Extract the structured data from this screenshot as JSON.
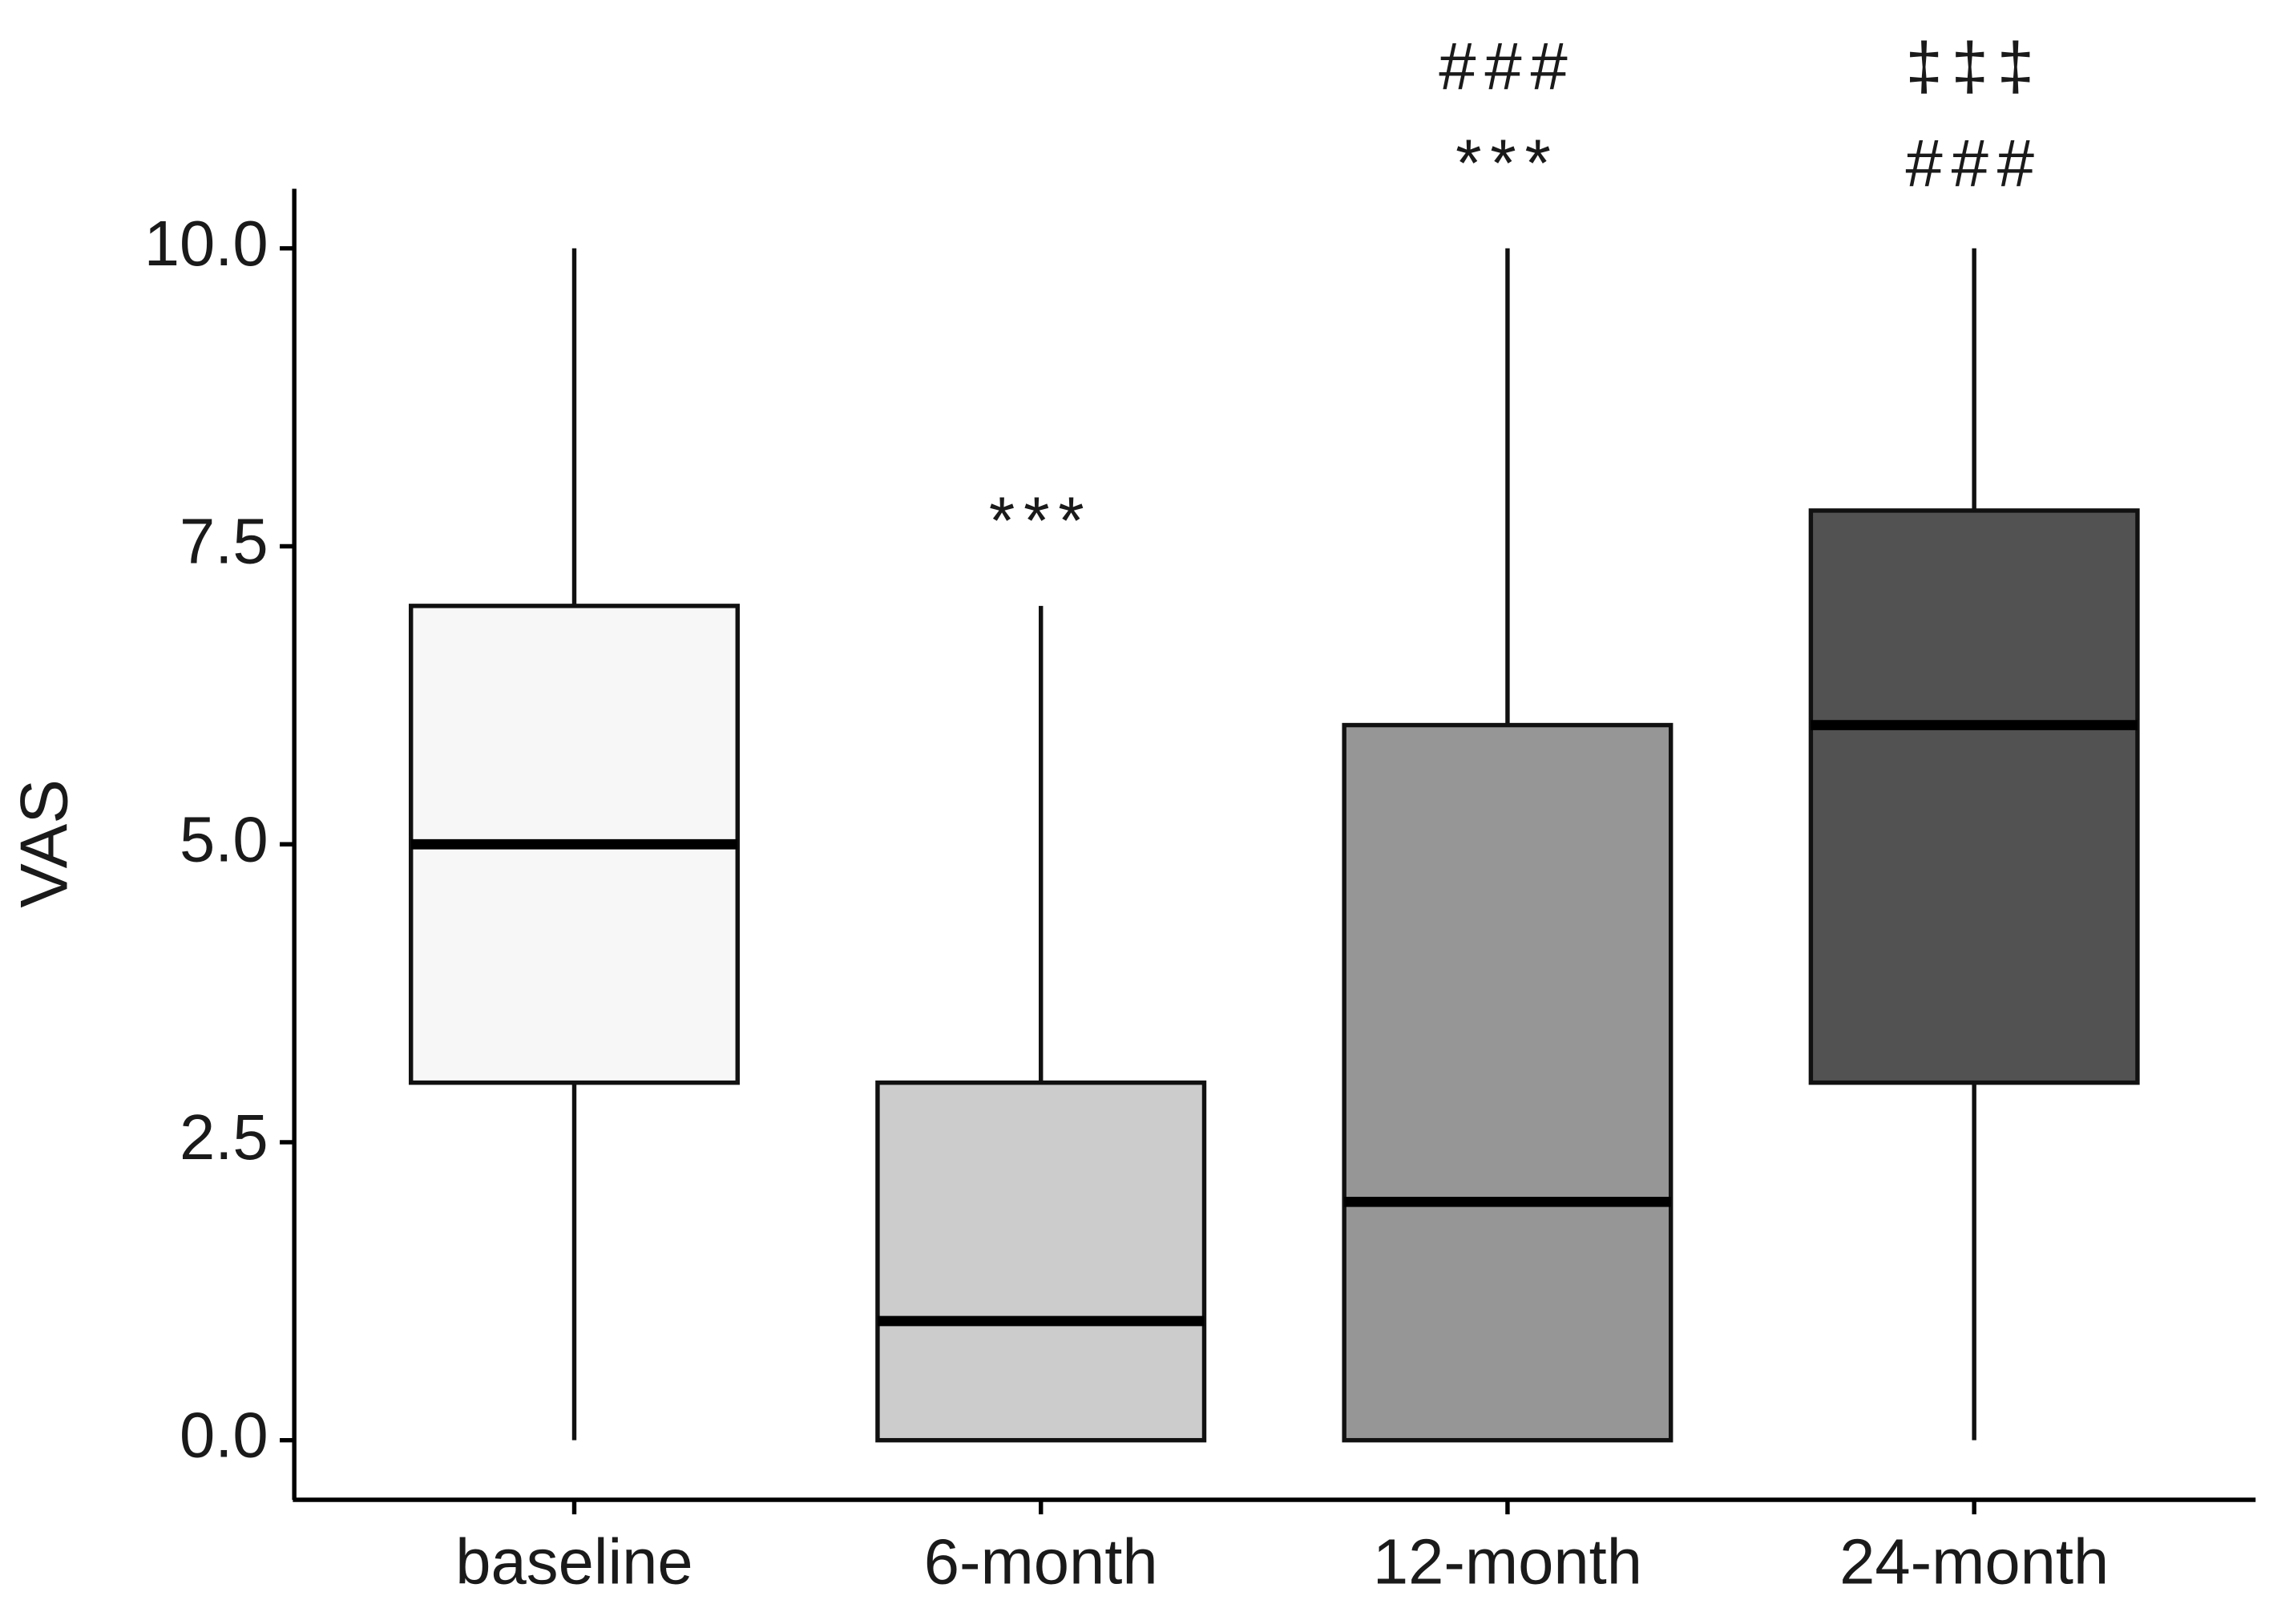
{
  "chart_data": {
    "type": "box",
    "y_label": "VAS",
    "categories": [
      "baseline",
      "6-month",
      "12-month",
      "24-month"
    ],
    "boxes": [
      {
        "low": 0,
        "q1": 3,
        "median": 5,
        "q3": 7,
        "high": 10,
        "color": "#f7f7f7"
      },
      {
        "low": 0,
        "q1": 0,
        "median": 1,
        "q3": 3,
        "high": 7,
        "color": "#cccccc"
      },
      {
        "low": 0,
        "q1": 0,
        "median": 2,
        "q3": 6,
        "high": 10,
        "color": "#969696"
      },
      {
        "low": 0,
        "q1": 3,
        "median": 6,
        "q3": 7.8,
        "high": 10,
        "color": "#525252"
      }
    ],
    "annotations": [
      [],
      [
        "***"
      ],
      [
        "###",
        "***"
      ],
      [
        "‡‡‡",
        "###"
      ]
    ],
    "ylim": [
      -0.5,
      10.5
    ],
    "yticks": [
      {
        "value": 0,
        "label": "0.0"
      },
      {
        "value": 2.5,
        "label": "2.5"
      },
      {
        "value": 5,
        "label": "5.0"
      },
      {
        "value": 7.5,
        "label": "7.5"
      },
      {
        "value": 10,
        "label": "10.0"
      }
    ],
    "grid": false
  }
}
